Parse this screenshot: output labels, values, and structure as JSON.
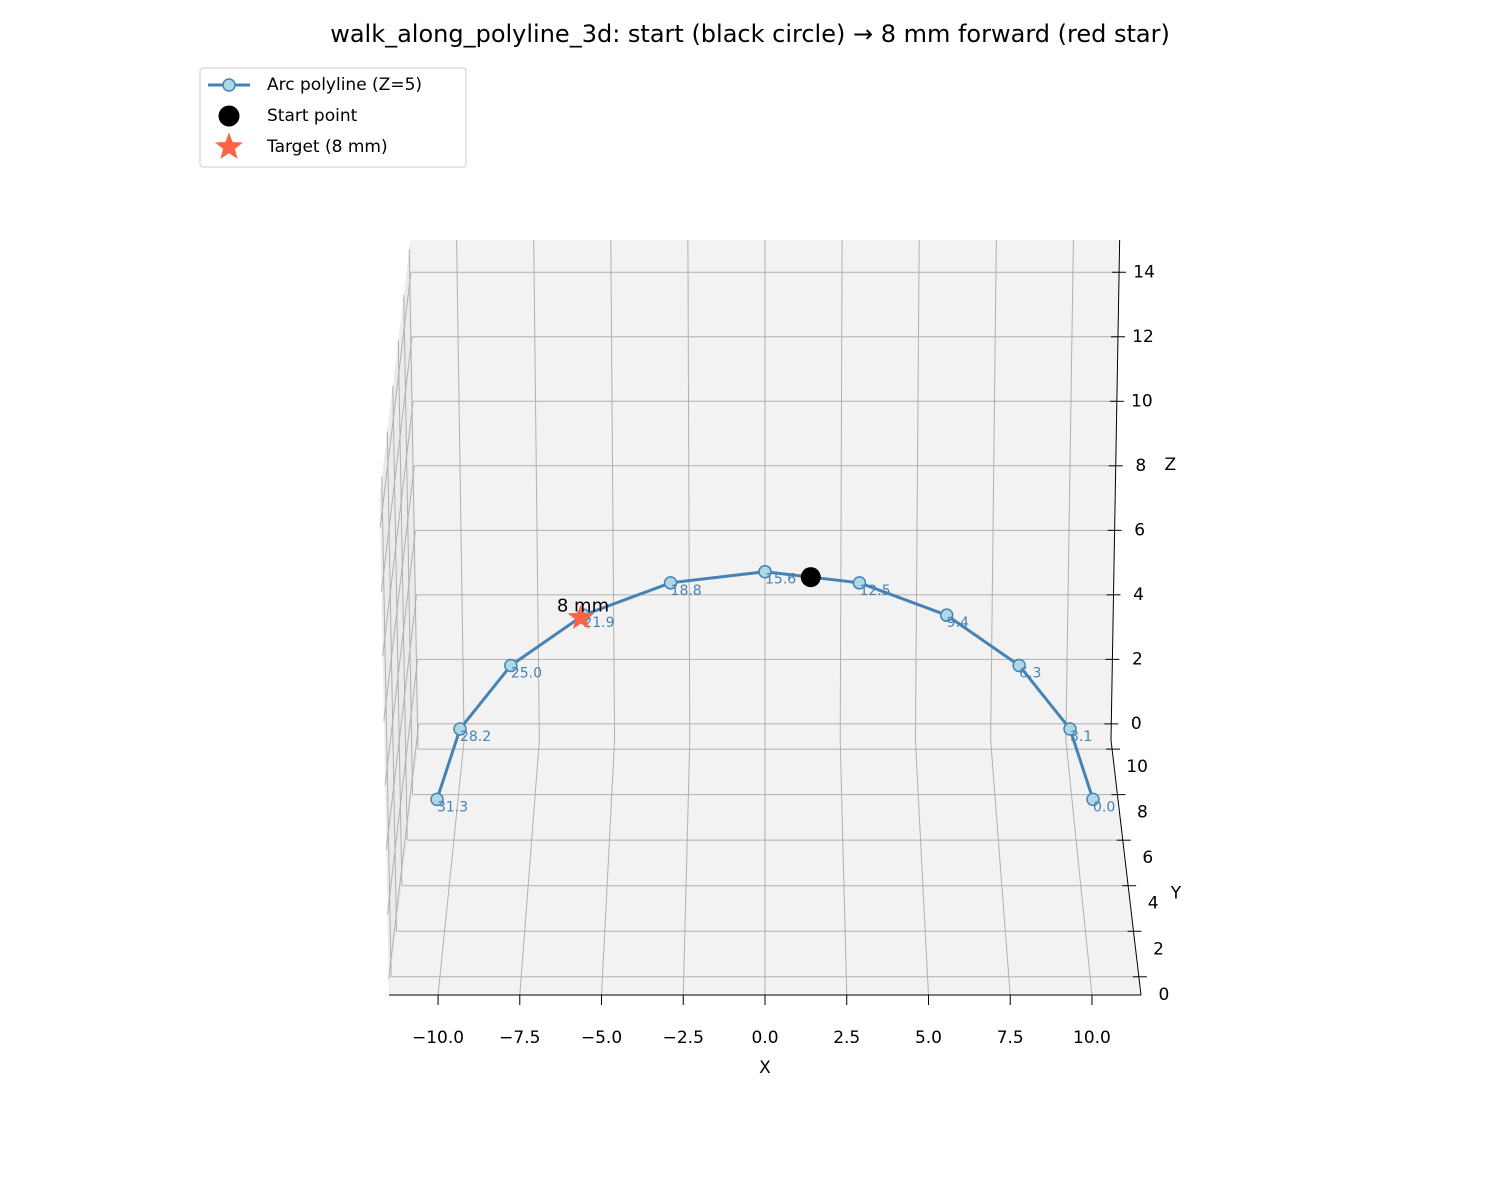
{
  "chart_data": {
    "type": "line3d",
    "title": "walk_along_polyline_3d: start (black circle) → 8 mm forward (red star)",
    "xlabel": "X",
    "ylabel": "Y",
    "zlabel": "Z",
    "xlim": [
      -11.5,
      11.5
    ],
    "ylim": [
      -0.8,
      10.4
    ],
    "zlim": [
      -0.5,
      15
    ],
    "xticks": [
      {
        "value": -10,
        "label": "−10.0"
      },
      {
        "value": -7.5,
        "label": "−7.5"
      },
      {
        "value": -5,
        "label": "−5.0"
      },
      {
        "value": -2.5,
        "label": "−2.5"
      },
      {
        "value": 0,
        "label": "0.0"
      },
      2.5,
      {
        "value": 5,
        "label": "5.0"
      },
      7.5,
      {
        "value": 10,
        "label": "10.0"
      }
    ],
    "yticks": [
      0,
      2,
      4,
      6,
      8,
      10
    ],
    "zticks": [
      0,
      2,
      4,
      6,
      8,
      10,
      12,
      14
    ],
    "grid": true,
    "legend": "upper left",
    "annotation": "8 mm",
    "series": [
      {
        "name": "Arc polyline (Z=5)",
        "color": "#4682b4",
        "marker_color": "#add8e6",
        "marker": "circle",
        "x": [
          10,
          9.51,
          8.09,
          5.88,
          3.09,
          0,
          -3.09,
          -5.88,
          -8.09,
          -9.51,
          -10
        ],
        "y": [
          0,
          3.09,
          5.88,
          8.09,
          9.51,
          10,
          9.51,
          8.09,
          5.88,
          3.09,
          0
        ],
        "z": [
          5,
          5,
          5,
          5,
          5,
          5,
          5,
          5,
          5,
          5,
          5
        ],
        "point_labels": [
          "0.0",
          "3.1",
          "6.3",
          "9.4",
          "12.5",
          "15.6",
          "18.8",
          "21.9",
          "25.0",
          "28.2",
          "31.3"
        ]
      },
      {
        "name": "Start point",
        "color": "#000000",
        "marker": "dot",
        "x": [
          1.5
        ],
        "y": [
          9.76
        ],
        "z": [
          5
        ]
      },
      {
        "name": "Target (8 mm)",
        "color": "#ff6347",
        "marker": "star",
        "x": [
          -5.95
        ],
        "y": [
          7.98
        ],
        "z": [
          5
        ]
      }
    ]
  }
}
